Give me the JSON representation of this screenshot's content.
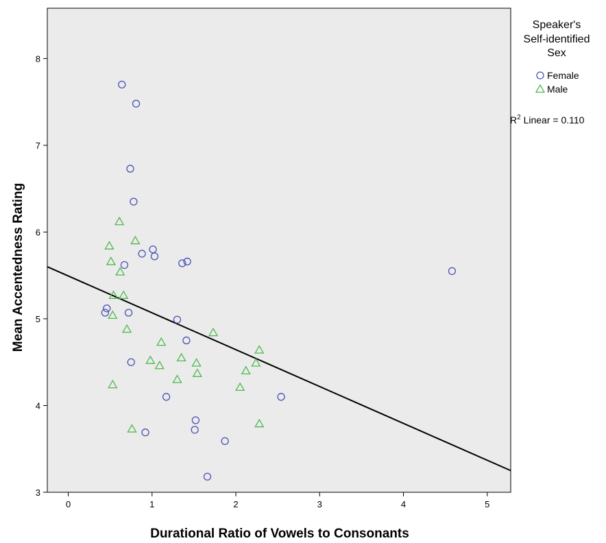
{
  "chart_data": {
    "type": "scatter",
    "xlabel": "Durational Ratio of Vowels to Consonants",
    "ylabel": "Mean Accentedness Rating",
    "xlim": [
      -0.25,
      5.28
    ],
    "ylim": [
      3,
      8.58
    ],
    "x_ticks": [
      0,
      1,
      2,
      3,
      4,
      5
    ],
    "y_ticks": [
      3,
      4,
      5,
      6,
      7,
      8
    ],
    "grid": false,
    "legend": {
      "title_lines": [
        "Speaker's",
        "Self-identified",
        "Sex"
      ],
      "placement": "right"
    },
    "series": [
      {
        "name": "Female",
        "marker": "circle",
        "color": "#4a52b5",
        "points": [
          {
            "x": 0.64,
            "y": 7.7
          },
          {
            "x": 0.81,
            "y": 7.48
          },
          {
            "x": 0.74,
            "y": 6.73
          },
          {
            "x": 0.78,
            "y": 6.35
          },
          {
            "x": 1.01,
            "y": 5.8
          },
          {
            "x": 0.88,
            "y": 5.75
          },
          {
            "x": 1.03,
            "y": 5.72
          },
          {
            "x": 1.36,
            "y": 5.64
          },
          {
            "x": 1.42,
            "y": 5.66
          },
          {
            "x": 0.67,
            "y": 5.62
          },
          {
            "x": 4.58,
            "y": 5.55
          },
          {
            "x": 0.46,
            "y": 5.12
          },
          {
            "x": 0.44,
            "y": 5.07
          },
          {
            "x": 0.72,
            "y": 5.07
          },
          {
            "x": 1.3,
            "y": 4.99
          },
          {
            "x": 1.41,
            "y": 4.75
          },
          {
            "x": 0.75,
            "y": 4.5
          },
          {
            "x": 1.17,
            "y": 4.1
          },
          {
            "x": 2.54,
            "y": 4.1
          },
          {
            "x": 1.52,
            "y": 3.83
          },
          {
            "x": 1.51,
            "y": 3.72
          },
          {
            "x": 0.92,
            "y": 3.69
          },
          {
            "x": 1.87,
            "y": 3.59
          },
          {
            "x": 1.66,
            "y": 3.18
          }
        ]
      },
      {
        "name": "Male",
        "marker": "triangle",
        "color": "#4db84d",
        "points": [
          {
            "x": 0.61,
            "y": 6.12
          },
          {
            "x": 0.8,
            "y": 5.9
          },
          {
            "x": 0.49,
            "y": 5.84
          },
          {
            "x": 0.51,
            "y": 5.66
          },
          {
            "x": 0.62,
            "y": 5.54
          },
          {
            "x": 0.54,
            "y": 5.27
          },
          {
            "x": 0.66,
            "y": 5.27
          },
          {
            "x": 0.53,
            "y": 5.04
          },
          {
            "x": 0.7,
            "y": 4.88
          },
          {
            "x": 1.73,
            "y": 4.84
          },
          {
            "x": 1.11,
            "y": 4.73
          },
          {
            "x": 2.28,
            "y": 4.64
          },
          {
            "x": 1.35,
            "y": 4.55
          },
          {
            "x": 0.98,
            "y": 4.52
          },
          {
            "x": 1.53,
            "y": 4.49
          },
          {
            "x": 2.24,
            "y": 4.49
          },
          {
            "x": 1.09,
            "y": 4.46
          },
          {
            "x": 2.12,
            "y": 4.4
          },
          {
            "x": 1.54,
            "y": 4.37
          },
          {
            "x": 1.3,
            "y": 4.3
          },
          {
            "x": 0.53,
            "y": 4.24
          },
          {
            "x": 2.05,
            "y": 4.21
          },
          {
            "x": 2.28,
            "y": 3.79
          },
          {
            "x": 0.76,
            "y": 3.73
          }
        ]
      }
    ],
    "fit_line": {
      "label": "R² Linear = 0.110",
      "label_base": "R",
      "label_sup": "2",
      "label_rest": " Linear = 0.110",
      "color": "#000000",
      "points": [
        {
          "x": -0.25,
          "y": 5.6
        },
        {
          "x": 5.28,
          "y": 3.25
        }
      ]
    },
    "plot_background": "#ebebeb"
  }
}
